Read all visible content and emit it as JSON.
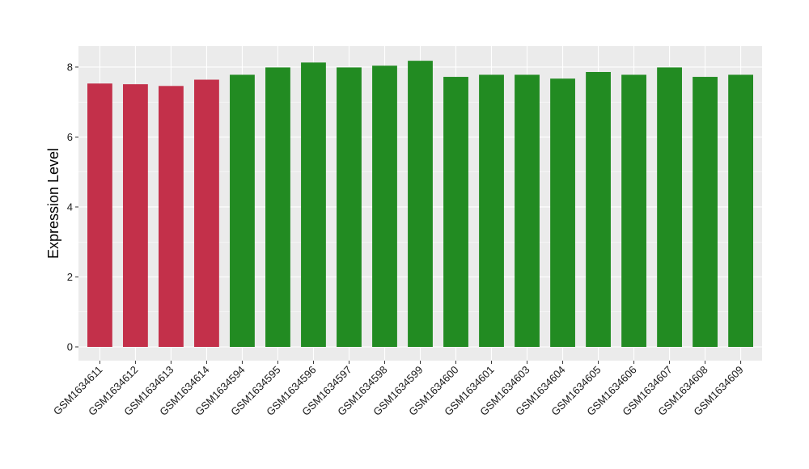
{
  "chart_data": {
    "type": "bar",
    "title": "",
    "xlabel": "",
    "ylabel": "Expression Level",
    "ylim": [
      0,
      8.6
    ],
    "yticks": [
      0,
      2,
      4,
      6,
      8
    ],
    "grid": true,
    "categories": [
      "GSM1634611",
      "GSM1634612",
      "GSM1634613",
      "GSM1634614",
      "GSM1634594",
      "GSM1634595",
      "GSM1634596",
      "GSM1634597",
      "GSM1634598",
      "GSM1634599",
      "GSM1634600",
      "GSM1634601",
      "GSM1634603",
      "GSM1634604",
      "GSM1634605",
      "GSM1634606",
      "GSM1634607",
      "GSM1634608",
      "GSM1634609"
    ],
    "values": [
      7.53,
      7.51,
      7.46,
      7.64,
      7.78,
      7.99,
      8.13,
      7.99,
      8.04,
      8.18,
      7.72,
      7.78,
      7.78,
      7.67,
      7.86,
      7.78,
      7.99,
      7.72,
      7.78
    ],
    "groups": [
      "red",
      "red",
      "red",
      "red",
      "green",
      "green",
      "green",
      "green",
      "green",
      "green",
      "green",
      "green",
      "green",
      "green",
      "green",
      "green",
      "green",
      "green",
      "green"
    ],
    "colors": {
      "red": "#C3304A",
      "green": "#228B22",
      "panel": "#EBEBEB",
      "grid": "#FFFFFF"
    }
  }
}
